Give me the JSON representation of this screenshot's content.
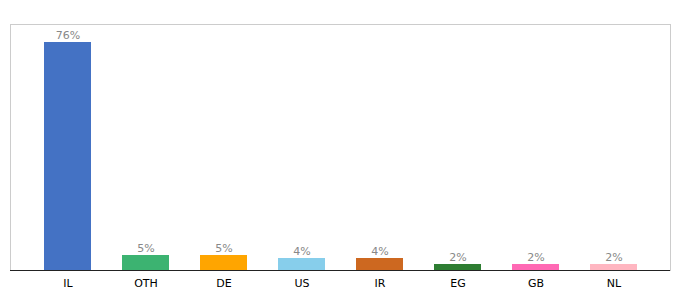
{
  "chart_data": {
    "type": "bar",
    "categories": [
      "IL",
      "OTH",
      "DE",
      "US",
      "IR",
      "EG",
      "GB",
      "NL"
    ],
    "values": [
      76,
      5,
      5,
      4,
      4,
      2,
      2,
      2
    ],
    "value_labels": [
      "76%",
      "5%",
      "5%",
      "4%",
      "4%",
      "2%",
      "2%",
      "2%"
    ],
    "colors": [
      "#4472C4",
      "#3CB371",
      "#FFA500",
      "#87CEEB",
      "#CD6820",
      "#2E7D32",
      "#FF69B4",
      "#FFB6C1"
    ],
    "ylim": [
      0,
      82
    ],
    "data_labels": true,
    "tick_labels": "x"
  }
}
